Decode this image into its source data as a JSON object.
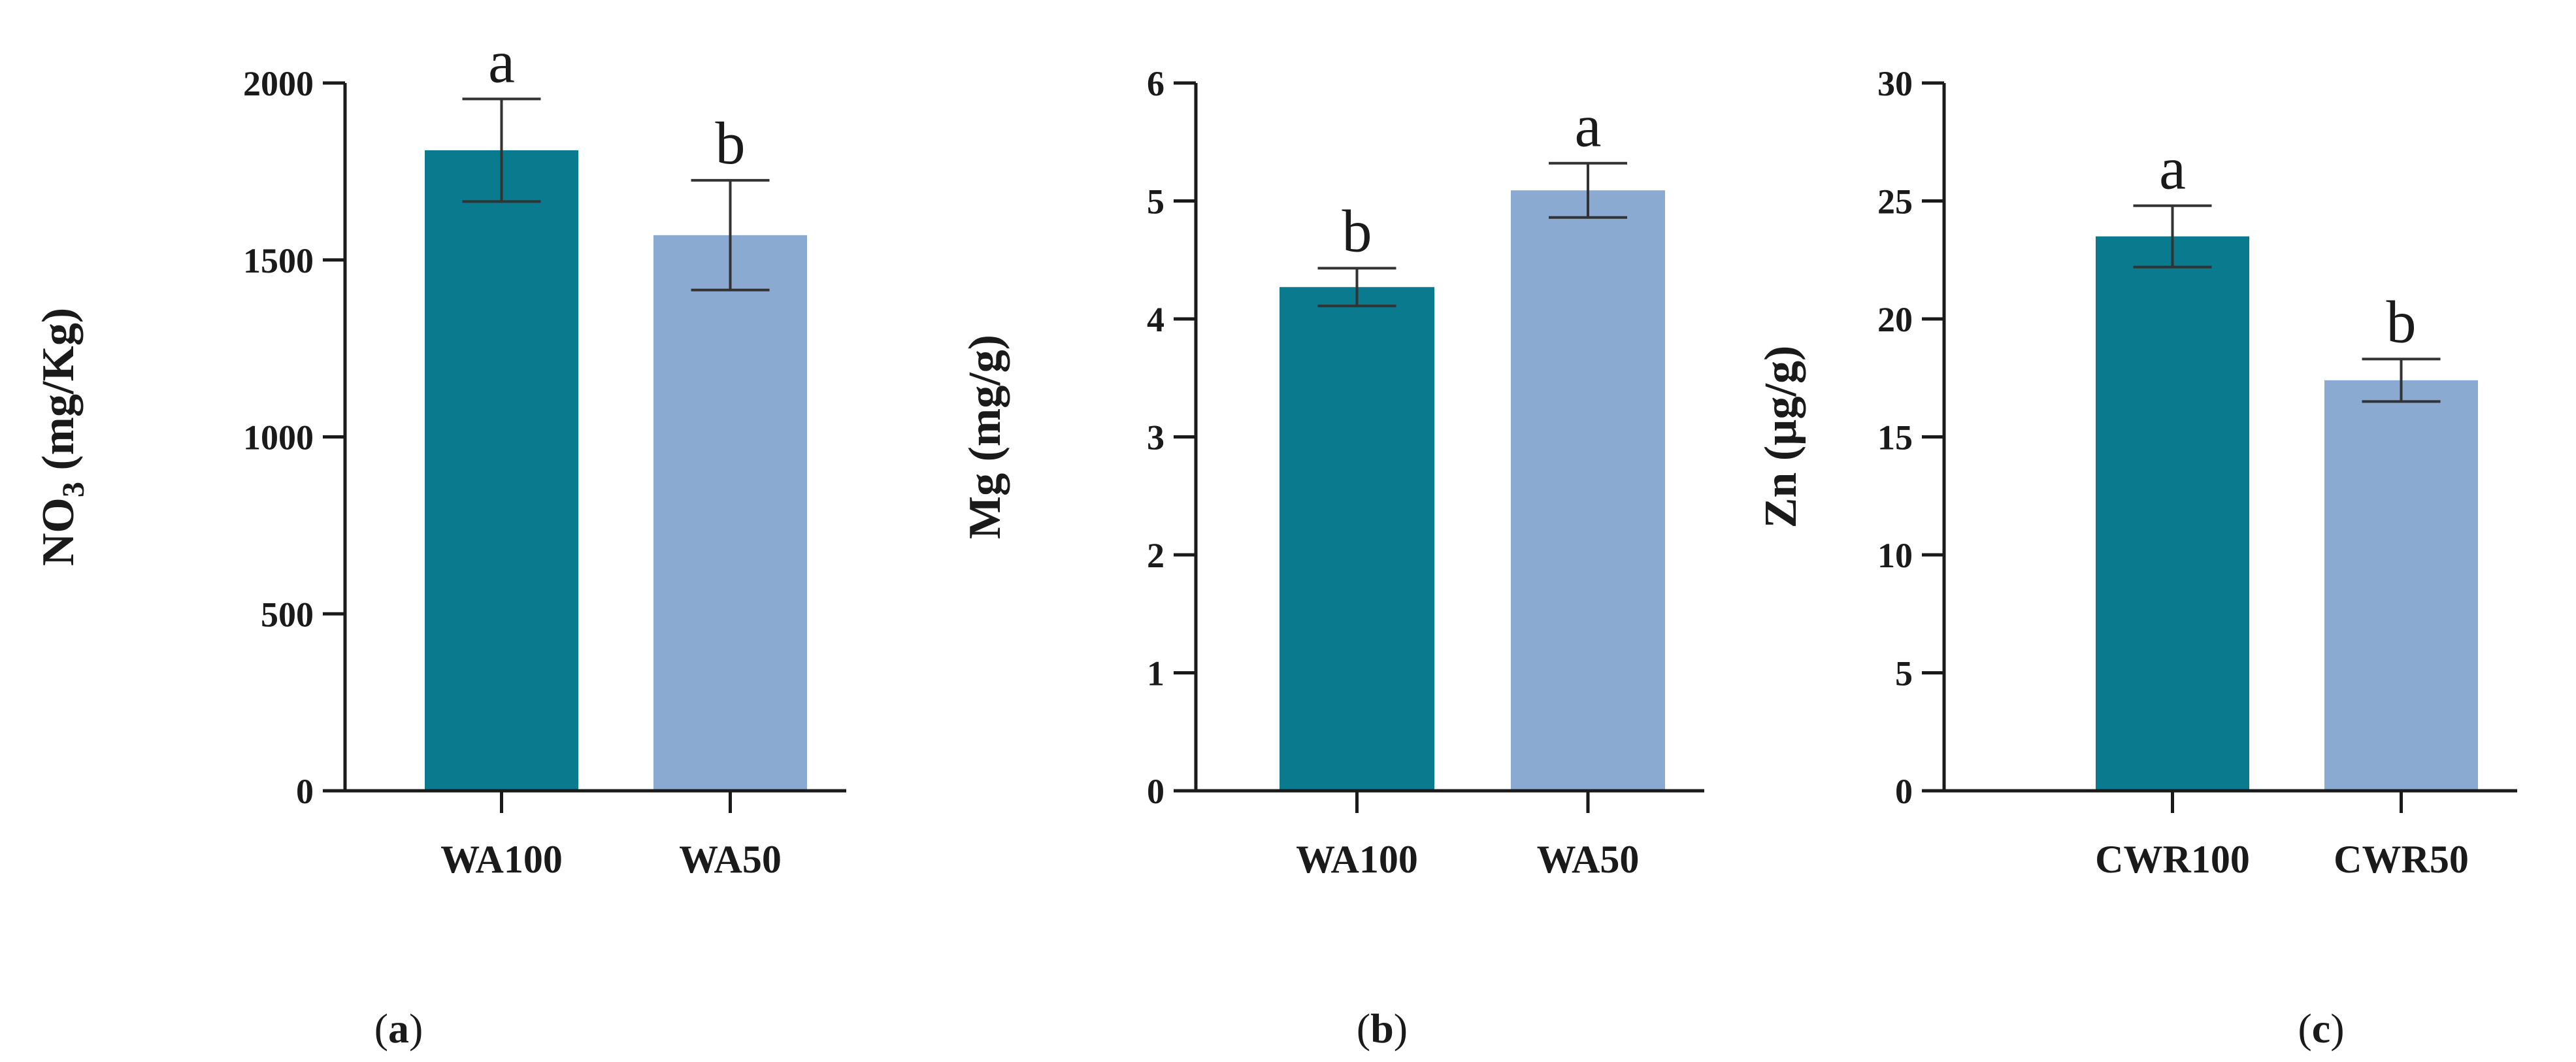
{
  "chart_data": [
    {
      "type": "bar",
      "panel_label": "a",
      "ylabel": "NO3 (mg/Kg)",
      "ylabel_main": "NO",
      "ylabel_sub": "3",
      "ylabel_rest": " (mg/Kg)",
      "ylim": [
        0,
        2000
      ],
      "yticks": [
        0,
        500,
        1000,
        1500,
        2000
      ],
      "categories": [
        "WA100",
        "WA50"
      ],
      "values": [
        1810,
        1570
      ],
      "errors": [
        145,
        155
      ],
      "letters": [
        "a",
        "b"
      ],
      "colors": [
        "#0a7a8f",
        "#8aaad2"
      ]
    },
    {
      "type": "bar",
      "panel_label": "b",
      "ylabel": "Mg (mg/g)",
      "ylim": [
        0,
        6
      ],
      "yticks": [
        0,
        1,
        2,
        3,
        4,
        5,
        6
      ],
      "categories": [
        "WA100",
        "WA50"
      ],
      "values": [
        4.27,
        5.09
      ],
      "errors": [
        0.16,
        0.23
      ],
      "letters": [
        "b",
        "a"
      ],
      "colors": [
        "#0a7a8f",
        "#8aaad2"
      ]
    },
    {
      "type": "bar",
      "panel_label": "c",
      "ylabel": "Zn (µg/g)",
      "ylim": [
        0,
        30
      ],
      "yticks": [
        0,
        5,
        10,
        15,
        20,
        25,
        30
      ],
      "categories": [
        "CWR100",
        "CWR50"
      ],
      "values": [
        23.5,
        17.4
      ],
      "errors": [
        1.3,
        0.9
      ],
      "letters": [
        "a",
        "b"
      ],
      "colors": [
        "#0a7a8f",
        "#8aaad2"
      ]
    }
  ]
}
